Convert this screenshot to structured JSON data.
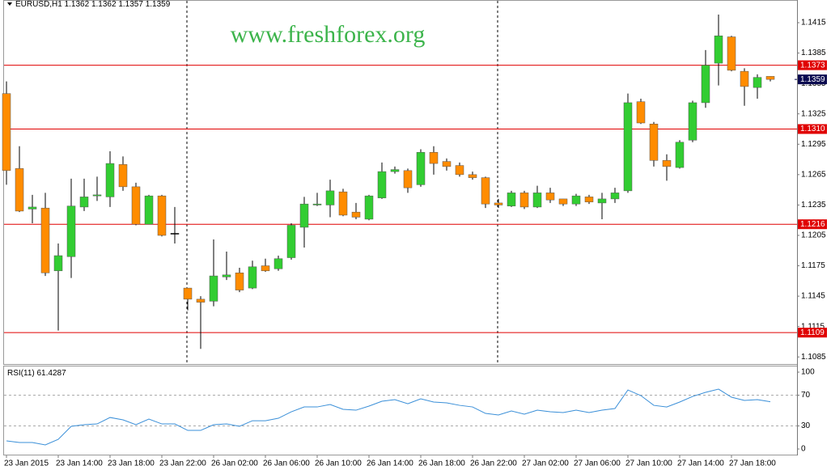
{
  "chart_data": [
    {
      "type": "candlestick",
      "title": "EURUSD,H1",
      "watermark": "www.freshforex.org",
      "categories": [
        "23 Jan 2015",
        null,
        null,
        null,
        "23 Jan 14:00",
        null,
        null,
        null,
        "23 Jan 18:00",
        null,
        null,
        null,
        "23 Jan 22:00",
        null,
        null,
        null,
        "26 Jan 02:00",
        null,
        null,
        null,
        "26 Jan 06:00",
        null,
        null,
        null,
        "26 Jan 10:00",
        null,
        null,
        null,
        "26 Jan 14:00",
        null,
        null,
        null,
        "26 Jan 18:00",
        null,
        null,
        null,
        "26 Jan 22:00",
        null,
        null,
        null,
        "27 Jan 02:00",
        null,
        null,
        null,
        "27 Jan 06:00",
        null,
        null,
        null,
        "27 Jan 10:00",
        null,
        null,
        null,
        "27 Jan 14:00",
        null,
        null,
        null,
        "27 Jan 18:00",
        null,
        null,
        null
      ],
      "open": [
        1.1345,
        1.1271,
        1.1231,
        1.1232,
        1.117,
        1.1184,
        1.1233,
        1.1244,
        1.1243,
        1.1275,
        1.1253,
        1.1216,
        1.1244,
        1.1207,
        1.1153,
        1.1142,
        1.114,
        1.1164,
        1.1168,
        1.1153,
        1.1175,
        1.1172,
        1.1183,
        1.1213,
        1.1235,
        1.1235,
        1.1248,
        1.1228,
        1.1221,
        1.1242,
        1.1268,
        1.1269,
        1.1255,
        1.1287,
        1.1278,
        1.1274,
        1.1265,
        1.1262,
        1.1237,
        1.1234,
        1.1247,
        1.1233,
        1.1247,
        1.1241,
        1.1236,
        1.1243,
        1.1237,
        1.1241,
        1.1249,
        1.1337,
        1.1315,
        1.1279,
        1.1272,
        1.1299,
        1.1336,
        1.1375,
        1.1401,
        1.1367,
        1.1351,
        1.1362
      ],
      "high": [
        1.1357,
        1.1293,
        1.1245,
        1.1247,
        1.1197,
        1.1261,
        1.1261,
        1.1263,
        1.1288,
        1.1283,
        1.1257,
        1.1245,
        1.1245,
        1.1233,
        1.1153,
        1.1145,
        1.1201,
        1.1189,
        1.1173,
        1.118,
        1.1182,
        1.1185,
        1.1217,
        1.1243,
        1.1247,
        1.126,
        1.1251,
        1.1237,
        1.1245,
        1.1277,
        1.1273,
        1.1271,
        1.129,
        1.1293,
        1.1281,
        1.1277,
        1.1268,
        1.1263,
        1.1241,
        1.1249,
        1.1249,
        1.1254,
        1.1252,
        1.1241,
        1.1246,
        1.1245,
        1.1247,
        1.1252,
        1.1345,
        1.134,
        1.1317,
        1.1285,
        1.1299,
        1.1338,
        1.1388,
        1.1423,
        1.1402,
        1.137,
        1.1364,
        1.1362
      ],
      "low": [
        1.1255,
        1.1228,
        1.1217,
        1.1165,
        1.1111,
        1.1163,
        1.1229,
        1.1239,
        1.1233,
        1.1249,
        1.1215,
        1.1216,
        1.1204,
        1.1197,
        1.1131,
        1.1093,
        1.1135,
        1.1161,
        1.1149,
        1.1152,
        1.1169,
        1.117,
        1.1181,
        1.1193,
        1.1234,
        1.1223,
        1.1224,
        1.1221,
        1.122,
        1.1241,
        1.1266,
        1.1247,
        1.1253,
        1.1265,
        1.1269,
        1.1263,
        1.126,
        1.1232,
        1.1232,
        1.1233,
        1.1231,
        1.1232,
        1.1237,
        1.1234,
        1.1234,
        1.1236,
        1.1221,
        1.1237,
        1.1247,
        1.1315,
        1.1273,
        1.1259,
        1.1271,
        1.1297,
        1.1331,
        1.1353,
        1.1367,
        1.1333,
        1.134,
        1.1357
      ],
      "close": [
        1.1269,
        1.1229,
        1.1233,
        1.1168,
        1.1185,
        1.1234,
        1.1243,
        1.1245,
        1.1276,
        1.1253,
        1.1216,
        1.1244,
        1.1205,
        1.1207,
        1.1142,
        1.1139,
        1.1165,
        1.1166,
        1.1151,
        1.1174,
        1.117,
        1.1182,
        1.1215,
        1.1236,
        1.1236,
        1.1249,
        1.1225,
        1.1223,
        1.1244,
        1.1268,
        1.127,
        1.1252,
        1.1287,
        1.1276,
        1.1273,
        1.1265,
        1.1262,
        1.1236,
        1.1235,
        1.1247,
        1.1233,
        1.1247,
        1.124,
        1.1236,
        1.1244,
        1.1238,
        1.1241,
        1.1247,
        1.1336,
        1.1316,
        1.1279,
        1.1273,
        1.1297,
        1.1336,
        1.1373,
        1.1402,
        1.1368,
        1.1352,
        1.1361,
        1.1359
      ],
      "up_color": "#32cd32",
      "down_color": "#ff8c00",
      "ylim": [
        1.1078,
        1.1431
      ],
      "yticks": [
        1.1415,
        1.1385,
        1.1355,
        1.1325,
        1.1295,
        1.1265,
        1.1235,
        1.1205,
        1.1175,
        1.1145,
        1.1115,
        1.1085
      ],
      "levels": [
        1.1373,
        {
          "value": 1.131,
          "label": "1.1310"
        },
        1.1216,
        1.1109
      ],
      "level_color": "#e00000",
      "current_price_color": "#0a0a50"
    },
    {
      "type": "line",
      "title": "RSI(11)",
      "series": [
        {
          "color": "#3a8fd8",
          "values": [
            10.5,
            8.4,
            8.4,
            5.3,
            12.6,
            29.5,
            31.6,
            32.6,
            41,
            37.9,
            31.6,
            38.9,
            32.6,
            32.6,
            24.2,
            24.2,
            31.6,
            32.6,
            29.5,
            36.8,
            36.8,
            40,
            48.4,
            54.7,
            54.7,
            57.9,
            51.6,
            50.5,
            55.8,
            62.1,
            64.2,
            58.9,
            65.3,
            61.1,
            60,
            56.8,
            54.7,
            46.3,
            44.2,
            49.5,
            45.3,
            50.5,
            48.4,
            47.4,
            50.5,
            47.4,
            50.5,
            52.6,
            76.8,
            69.5,
            56.8,
            54.7,
            61.1,
            68.4,
            73.7,
            77.9,
            67.4,
            63.2,
            64.2,
            61.4287
          ]
        }
      ],
      "ylim": [
        -8.4,
        107.4
      ],
      "yticks": [
        0,
        30,
        70,
        100
      ],
      "levels": [
        30,
        70
      ]
    }
  ]
}
